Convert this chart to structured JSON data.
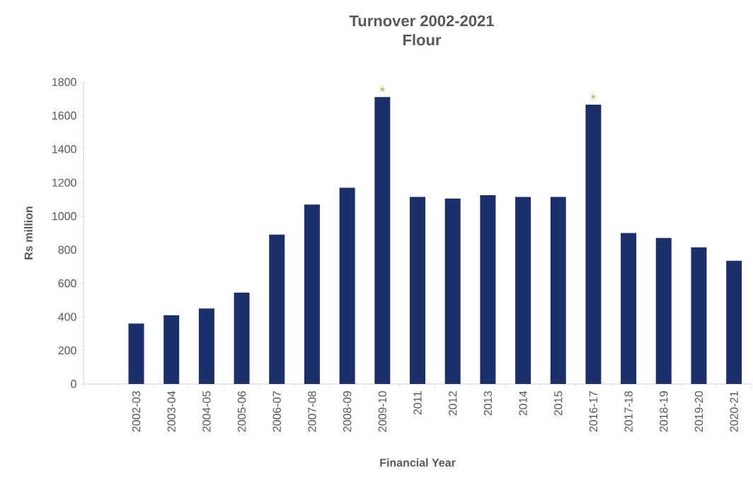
{
  "chart_data": {
    "type": "bar",
    "title": "Turnover  2002-2021",
    "subtitle": "Flour",
    "xlabel": "Financial Year",
    "ylabel": "Rs million",
    "categories": [
      null,
      "2002-03",
      "2003-04",
      "2004-05",
      "2005-06",
      "2006-07",
      "2007-08",
      "2008-09",
      "2009-10",
      "2011",
      "2012",
      "2013",
      "2014",
      "2015",
      "2016-17",
      "2017-18",
      "2018-19",
      "2019-20",
      "2020-21"
    ],
    "values": [
      null,
      360,
      410,
      450,
      545,
      890,
      1070,
      1170,
      1710,
      1115,
      1105,
      1125,
      1115,
      1115,
      1665,
      900,
      870,
      815,
      735
    ],
    "color": "#1b2f6b",
    "ylim": [
      0,
      1800
    ],
    "yticks": [
      0,
      200,
      400,
      600,
      800,
      1000,
      1200,
      1400,
      1600,
      1800
    ],
    "annotations": [
      {
        "text": "*",
        "x": "2009-10",
        "y": 1710
      },
      {
        "text": "*",
        "x": "2016-17",
        "y": 1665
      }
    ]
  }
}
